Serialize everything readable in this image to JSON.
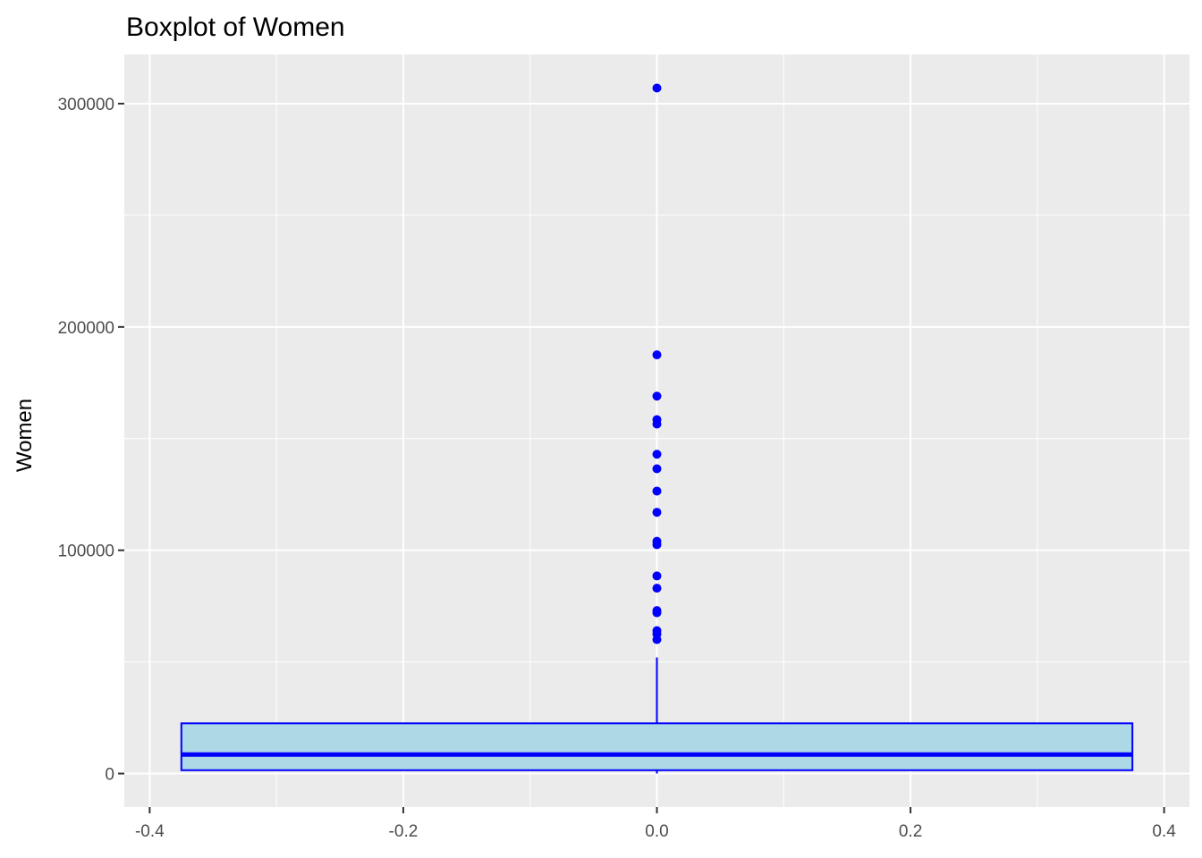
{
  "chart_data": {
    "type": "boxplot",
    "title": "Boxplot of Women",
    "xlabel": "",
    "ylabel": "Women",
    "x_ticks": [
      -0.4,
      -0.2,
      0.0,
      0.2,
      0.4
    ],
    "x_tick_labels": [
      "-0.4",
      "-0.2",
      "0.0",
      "0.2",
      "0.4"
    ],
    "y_ticks": [
      0,
      100000,
      200000,
      300000
    ],
    "y_tick_labels": [
      "0",
      "100000",
      "200000",
      "300000"
    ],
    "xlim": [
      -0.42,
      0.42
    ],
    "ylim": [
      -15000,
      322000
    ],
    "grid": true,
    "legend": "none",
    "box": {
      "x": 0.0,
      "width": 0.75,
      "min": 0,
      "q1": 1500,
      "median": 8500,
      "q3": 22500,
      "whisker_high": 52000,
      "outliers": [
        307000,
        187500,
        169000,
        158500,
        156500,
        143000,
        136500,
        126500,
        117000,
        104000,
        102500,
        88500,
        83000,
        73000,
        72000,
        64000,
        62500,
        60000
      ]
    },
    "colors": {
      "panel_background": "#ebebeb",
      "grid": "#ffffff",
      "box_fill": "#add8e6",
      "box_outline": "#0000ff",
      "outlier": "#0000ff"
    }
  }
}
